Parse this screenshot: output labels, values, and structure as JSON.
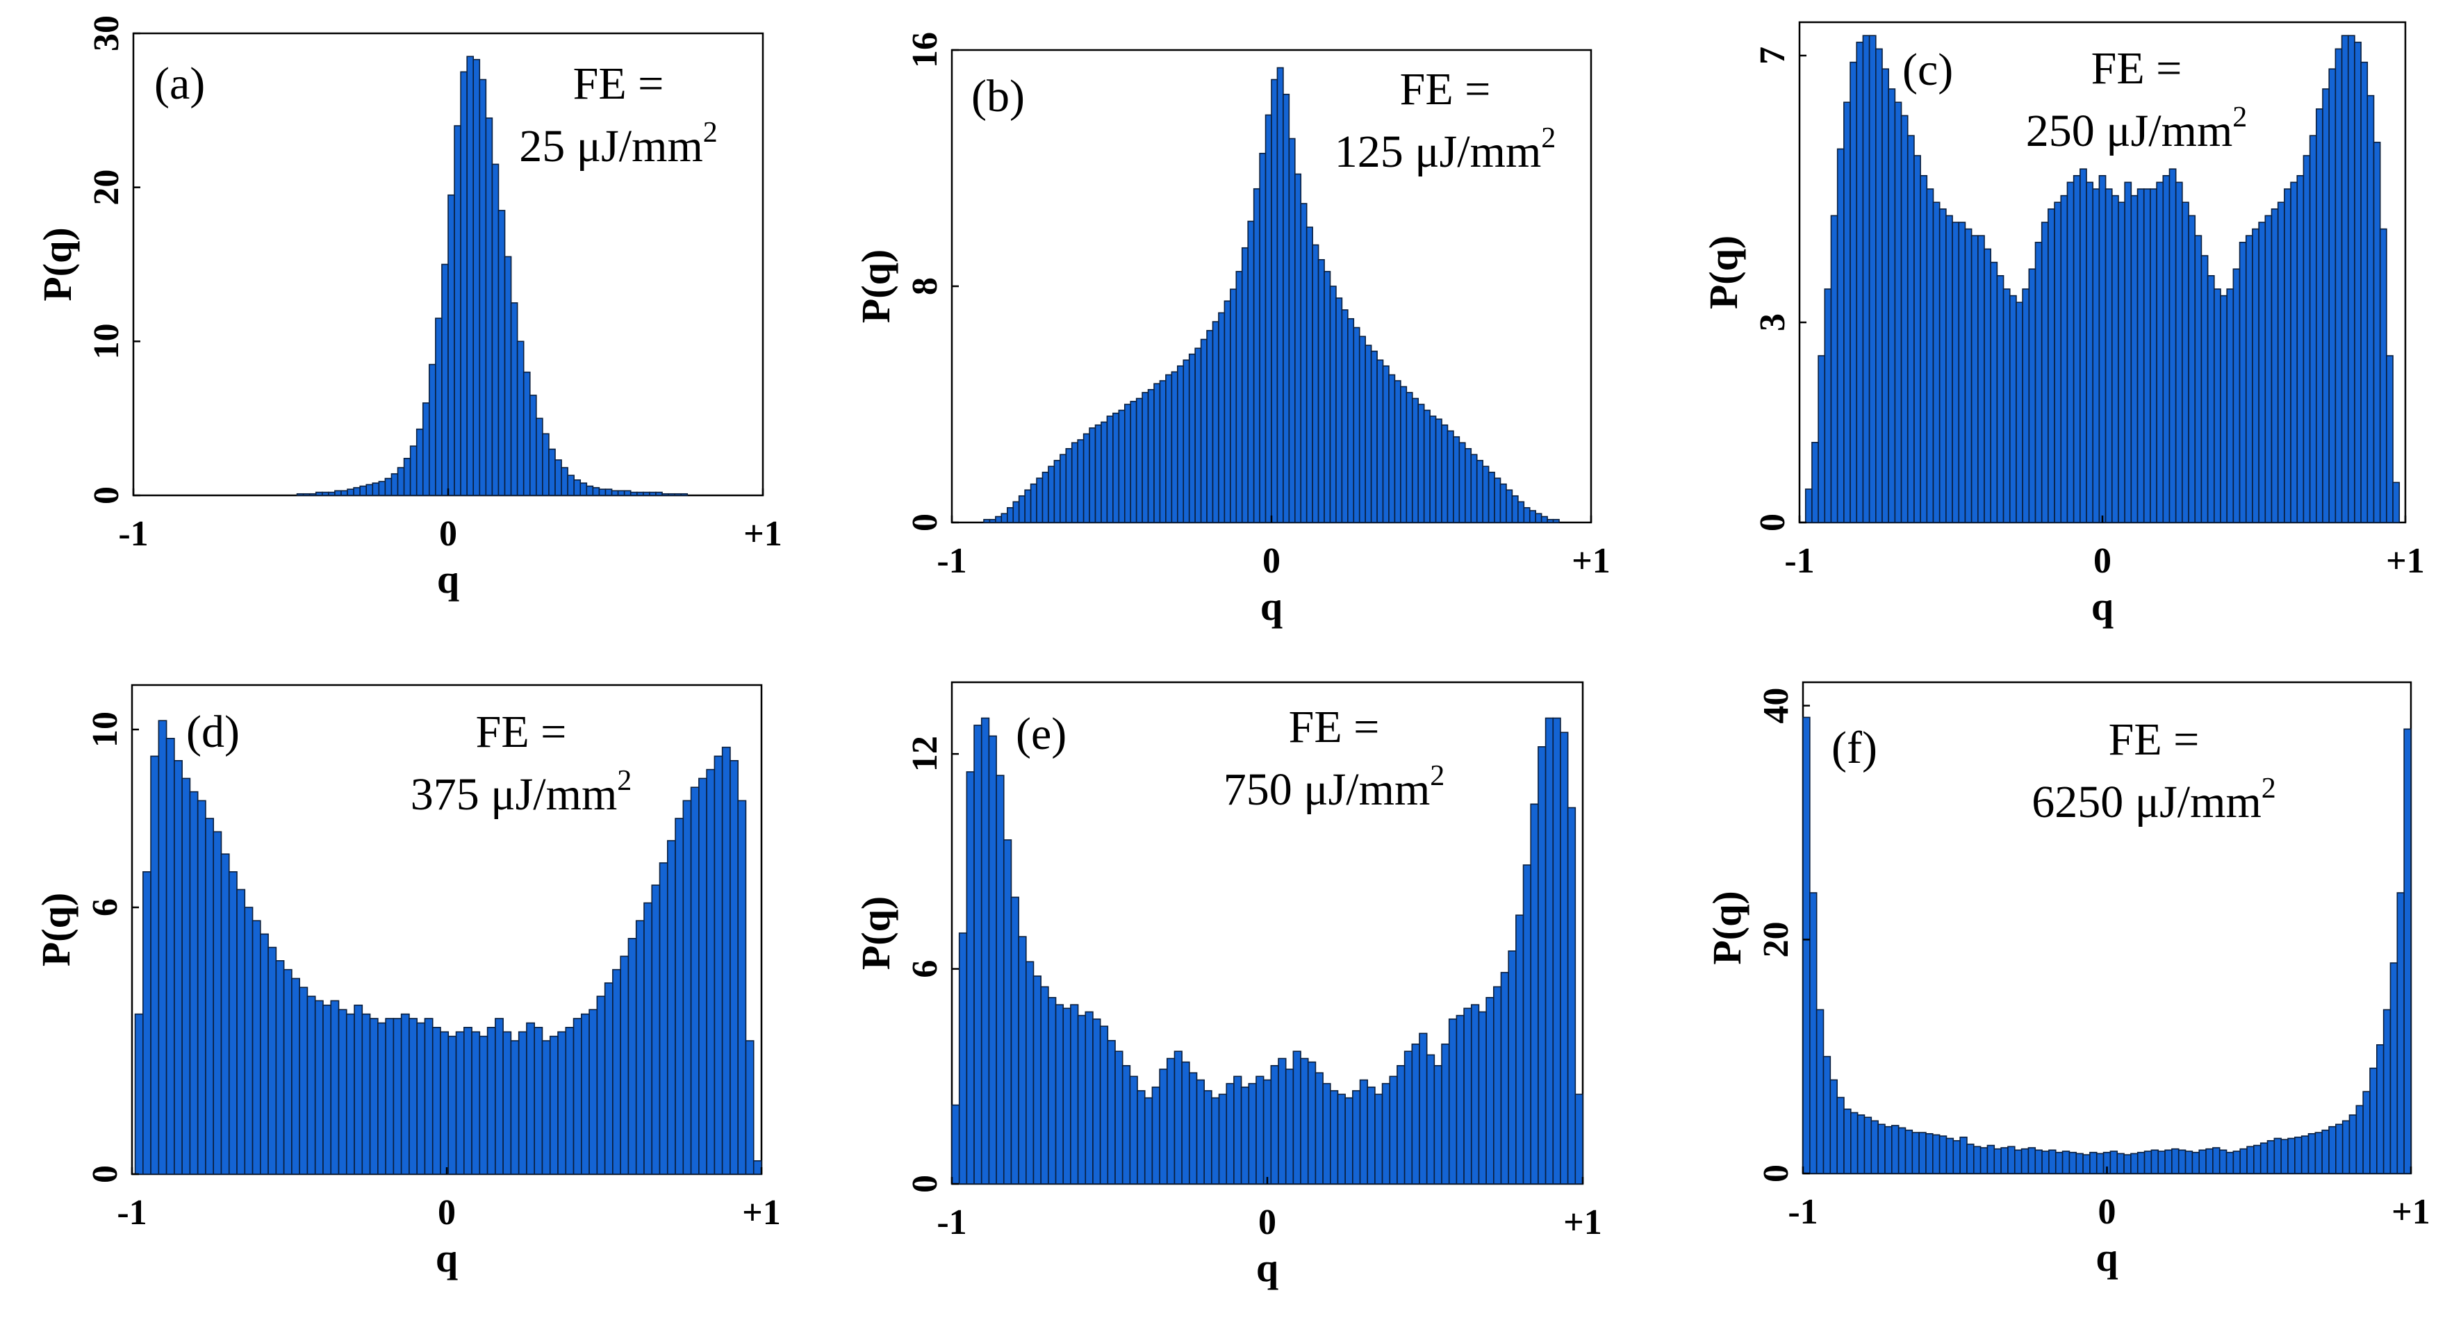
{
  "chart_data": [
    {
      "type": "bar",
      "panel_label": "(a)",
      "fe_prefix": "FE =",
      "fe_value": "25 μJ/mm",
      "fe_exp": "2",
      "xlabel": "q",
      "ylabel": "P(q)",
      "xlim": [
        -1,
        1
      ],
      "ylim": [
        0,
        30
      ],
      "x_ticks": [
        -1,
        0,
        1
      ],
      "x_tick_labels": [
        "-1",
        "0",
        "+1"
      ],
      "y_ticks": [
        0,
        10,
        20,
        30
      ],
      "y_tick_labels": [
        "0",
        "10",
        "20",
        "30"
      ],
      "bin_edges": [
        -1,
        1
      ],
      "values": [
        0,
        0,
        0,
        0,
        0,
        0,
        0,
        0,
        0,
        0,
        0,
        0,
        0,
        0,
        0,
        0,
        0,
        0,
        0,
        0,
        0,
        0,
        0,
        0,
        0,
        0,
        0.1,
        0.1,
        0.1,
        0.2,
        0.2,
        0.2,
        0.3,
        0.3,
        0.4,
        0.5,
        0.6,
        0.7,
        0.8,
        0.9,
        1.1,
        1.4,
        1.8,
        2.4,
        3.2,
        4.3,
        6.0,
        8.5,
        11.5,
        15.0,
        19.5,
        24.0,
        27.5,
        28.5,
        28.3,
        27.0,
        24.5,
        21.5,
        18.5,
        15.5,
        12.5,
        10.0,
        8.0,
        6.5,
        5.0,
        4.0,
        3.0,
        2.3,
        1.8,
        1.3,
        1.0,
        0.8,
        0.6,
        0.5,
        0.4,
        0.4,
        0.3,
        0.3,
        0.3,
        0.2,
        0.2,
        0.2,
        0.2,
        0.2,
        0.1,
        0.1,
        0.1,
        0.1,
        0,
        0,
        0,
        0,
        0,
        0,
        0,
        0,
        0,
        0,
        0,
        0
      ]
    },
    {
      "type": "bar",
      "panel_label": "(b)",
      "fe_prefix": "FE =",
      "fe_value": "125 μJ/mm",
      "fe_exp": "2",
      "xlabel": "q",
      "ylabel": "P(q)",
      "xlim": [
        -1,
        1
      ],
      "ylim": [
        0,
        16
      ],
      "x_ticks": [
        -1,
        0,
        1
      ],
      "x_tick_labels": [
        "-1",
        "0",
        "+1"
      ],
      "y_ticks": [
        0,
        8,
        16
      ],
      "y_tick_labels": [
        "0",
        "8",
        "16"
      ],
      "bin_edges": [
        -0.9,
        0.9
      ],
      "values": [
        0.1,
        0.1,
        0.2,
        0.3,
        0.5,
        0.7,
        0.9,
        1.1,
        1.3,
        1.5,
        1.7,
        1.9,
        2.1,
        2.3,
        2.5,
        2.7,
        2.8,
        3.0,
        3.2,
        3.3,
        3.4,
        3.6,
        3.7,
        3.8,
        4.0,
        4.1,
        4.2,
        4.4,
        4.5,
        4.7,
        4.8,
        5.0,
        5.1,
        5.3,
        5.5,
        5.7,
        5.9,
        6.2,
        6.5,
        6.8,
        7.1,
        7.5,
        7.9,
        8.5,
        9.3,
        10.2,
        11.3,
        12.5,
        13.8,
        15.0,
        15.4,
        14.5,
        13.0,
        11.8,
        10.8,
        10.0,
        9.4,
        8.9,
        8.5,
        8.0,
        7.6,
        7.2,
        6.9,
        6.6,
        6.3,
        6.0,
        5.8,
        5.5,
        5.3,
        5.0,
        4.8,
        4.6,
        4.4,
        4.2,
        4.0,
        3.8,
        3.6,
        3.5,
        3.3,
        3.1,
        2.9,
        2.7,
        2.5,
        2.3,
        2.1,
        1.9,
        1.7,
        1.5,
        1.3,
        1.1,
        0.9,
        0.7,
        0.5,
        0.4,
        0.3,
        0.2,
        0.1,
        0.1
      ]
    },
    {
      "type": "bar",
      "panel_label": "(c)",
      "fe_prefix": "FE =",
      "fe_value": "250 μJ/mm",
      "fe_exp": "2",
      "xlabel": "q",
      "ylabel": "P(q)",
      "xlim": [
        -1,
        1
      ],
      "ylim": [
        0,
        7.5
      ],
      "x_ticks": [
        -1,
        0,
        1
      ],
      "x_tick_labels": [
        "-1",
        "0",
        "+1"
      ],
      "y_ticks": [
        0,
        3,
        7
      ],
      "y_tick_labels": [
        "0",
        "3",
        "7"
      ],
      "bin_edges": [
        -0.98,
        0.98
      ],
      "values": [
        0.5,
        1.2,
        2.5,
        3.5,
        4.6,
        5.6,
        6.3,
        6.9,
        7.2,
        7.3,
        7.3,
        7.1,
        6.8,
        6.5,
        6.3,
        6.1,
        5.8,
        5.5,
        5.2,
        5.0,
        4.8,
        4.7,
        4.6,
        4.5,
        4.5,
        4.4,
        4.3,
        4.3,
        4.1,
        3.9,
        3.7,
        3.5,
        3.4,
        3.3,
        3.5,
        3.8,
        4.2,
        4.5,
        4.7,
        4.8,
        4.9,
        5.1,
        5.2,
        5.3,
        5.1,
        5.0,
        5.2,
        5.0,
        4.9,
        4.8,
        5.1,
        4.9,
        5.0,
        5.0,
        5.0,
        5.1,
        5.2,
        5.3,
        5.1,
        4.8,
        4.6,
        4.3,
        4.0,
        3.7,
        3.5,
        3.4,
        3.5,
        3.8,
        4.2,
        4.3,
        4.4,
        4.5,
        4.6,
        4.7,
        4.8,
        5.0,
        5.1,
        5.2,
        5.5,
        5.8,
        6.2,
        6.5,
        6.8,
        7.1,
        7.3,
        7.3,
        7.2,
        6.9,
        6.4,
        5.7,
        4.4,
        2.5,
        0.6
      ]
    },
    {
      "type": "bar",
      "panel_label": "(d)",
      "fe_prefix": "FE =",
      "fe_value": "375 μJ/mm",
      "fe_exp": "2",
      "xlabel": "q",
      "ylabel": "P(q)",
      "xlim": [
        -1,
        1
      ],
      "ylim": [
        0,
        11
      ],
      "x_ticks": [
        -1,
        0,
        1
      ],
      "x_tick_labels": [
        "-1",
        "0",
        "+1"
      ],
      "y_ticks": [
        0,
        6,
        10
      ],
      "y_tick_labels": [
        "0",
        "6",
        "10"
      ],
      "bin_edges": [
        -0.99,
        1.0
      ],
      "values": [
        3.6,
        6.8,
        9.4,
        10.2,
        9.8,
        9.3,
        8.9,
        8.6,
        8.4,
        8.0,
        7.7,
        7.2,
        6.8,
        6.4,
        6.0,
        5.7,
        5.4,
        5.1,
        4.8,
        4.6,
        4.4,
        4.2,
        4.0,
        3.9,
        3.8,
        3.9,
        3.7,
        3.6,
        3.8,
        3.6,
        3.5,
        3.4,
        3.5,
        3.5,
        3.6,
        3.5,
        3.4,
        3.5,
        3.3,
        3.2,
        3.1,
        3.2,
        3.3,
        3.2,
        3.1,
        3.3,
        3.5,
        3.2,
        3.0,
        3.2,
        3.4,
        3.3,
        3.0,
        3.1,
        3.2,
        3.3,
        3.5,
        3.6,
        3.7,
        4.0,
        4.3,
        4.6,
        4.9,
        5.3,
        5.7,
        6.1,
        6.5,
        7.0,
        7.5,
        8.0,
        8.4,
        8.7,
        8.9,
        9.1,
        9.4,
        9.6,
        9.3,
        8.4,
        3.0,
        0.3
      ]
    },
    {
      "type": "bar",
      "panel_label": "(e)",
      "fe_prefix": "FE =",
      "fe_value": "750 μJ/mm",
      "fe_exp": "2",
      "xlabel": "q",
      "ylabel": "P(q)",
      "xlim": [
        -1,
        1
      ],
      "ylim": [
        0,
        14
      ],
      "x_ticks": [
        -1,
        0,
        1
      ],
      "x_tick_labels": [
        "-1",
        "0",
        "+1"
      ],
      "y_ticks": [
        0,
        6,
        12
      ],
      "y_tick_labels": [
        "0",
        "6",
        "12"
      ],
      "bin_edges": [
        -1,
        1
      ],
      "values": [
        2.2,
        7.0,
        11.5,
        12.8,
        13.0,
        12.5,
        11.4,
        9.6,
        8.0,
        6.9,
        6.2,
        5.8,
        5.5,
        5.2,
        5.0,
        4.9,
        5.0,
        4.7,
        4.8,
        4.6,
        4.4,
        4.0,
        3.7,
        3.3,
        3.0,
        2.6,
        2.4,
        2.7,
        3.2,
        3.5,
        3.7,
        3.4,
        3.1,
        2.9,
        2.6,
        2.4,
        2.5,
        2.8,
        3.0,
        2.7,
        2.8,
        3.0,
        2.9,
        3.3,
        3.5,
        3.2,
        3.7,
        3.5,
        3.4,
        3.1,
        2.8,
        2.6,
        2.5,
        2.4,
        2.6,
        2.9,
        2.7,
        2.5,
        2.8,
        3.0,
        3.3,
        3.7,
        3.9,
        4.2,
        3.6,
        3.3,
        3.9,
        4.6,
        4.7,
        4.9,
        5.0,
        4.8,
        5.2,
        5.5,
        5.9,
        6.5,
        7.5,
        8.9,
        10.6,
        12.2,
        13.0,
        13.0,
        12.6,
        10.5,
        2.5
      ]
    },
    {
      "type": "bar",
      "panel_label": "(f)",
      "fe_prefix": "FE =",
      "fe_value": "6250 μJ/mm",
      "fe_exp": "2",
      "xlabel": "q",
      "ylabel": "P(q)",
      "xlim": [
        -1,
        1
      ],
      "ylim": [
        0,
        42
      ],
      "x_ticks": [
        -1,
        0,
        1
      ],
      "x_tick_labels": [
        "-1",
        "0",
        "+1"
      ],
      "y_ticks": [
        0,
        20,
        40
      ],
      "y_tick_labels": [
        "0",
        "20",
        "40"
      ],
      "bin_edges": [
        -1,
        1
      ],
      "values": [
        39.0,
        24.0,
        14.0,
        10.0,
        8.0,
        6.5,
        5.5,
        5.2,
        5.0,
        4.8,
        4.5,
        4.2,
        4.0,
        4.1,
        3.9,
        3.7,
        3.5,
        3.5,
        3.4,
        3.3,
        3.2,
        3.0,
        2.8,
        3.1,
        2.5,
        2.3,
        2.2,
        2.4,
        2.1,
        2.2,
        2.3,
        2.0,
        2.1,
        2.2,
        2.0,
        1.9,
        2.0,
        1.8,
        1.9,
        1.8,
        1.7,
        1.6,
        1.8,
        1.7,
        1.8,
        1.9,
        1.7,
        1.6,
        1.7,
        1.8,
        1.9,
        2.0,
        1.9,
        2.0,
        2.1,
        2.0,
        1.9,
        1.8,
        2.0,
        2.1,
        2.2,
        2.0,
        1.8,
        1.9,
        2.1,
        2.3,
        2.4,
        2.6,
        2.8,
        3.0,
        2.9,
        3.0,
        3.1,
        3.2,
        3.4,
        3.5,
        3.7,
        4.0,
        4.2,
        4.5,
        5.0,
        5.8,
        7.0,
        9.0,
        11.0,
        14.0,
        18.0,
        24.0,
        38.0
      ]
    }
  ]
}
